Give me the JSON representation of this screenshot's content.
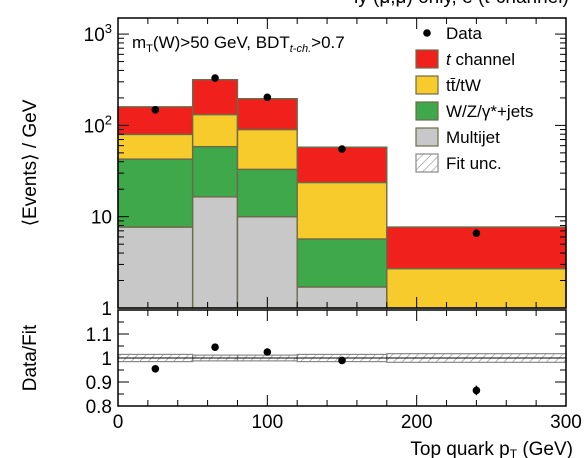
{
  "chart_data": [
    {
      "type": "bar",
      "panel": "main",
      "stacked": true,
      "title_fragment": "ly (μ,μ) only, e (t-channel)",
      "ylabel": "⟨Events⟩ / GeV",
      "xlabel": "Top quark p",
      "xlabel_sub": "T",
      "xlabel_unit": "(GeV)",
      "y_scale": "log",
      "ylim": [
        1,
        1500
      ],
      "xlim": [
        0,
        300
      ],
      "bin_edges": [
        0,
        50,
        80,
        120,
        180,
        300
      ],
      "cut_text": {
        "m": "m",
        "m_sub": "T",
        "m_rest": "(W)>50 GeV, BDT",
        "bdt_sub": "t-ch.",
        "bdt_rest": ">0.7"
      },
      "y_tick_labels": [
        {
          "value": 1000,
          "base": "10",
          "exp": "3"
        },
        {
          "value": 100,
          "base": "10",
          "exp": "2"
        },
        {
          "value": 10,
          "base": "10",
          "exp": ""
        },
        {
          "value": 1,
          "base": "1",
          "exp": ""
        }
      ],
      "series": [
        {
          "name": "Multijet",
          "color": "#c8c8c8",
          "values": [
            7.7,
            16.5,
            10.0,
            1.7,
            0.0
          ]
        },
        {
          "name": "W/Z/γ*+jets",
          "color": "#3fa84a",
          "values": [
            35,
            42,
            23,
            4.0,
            0.0
          ]
        },
        {
          "name": "tt̄/tW",
          "color": "#f8cb2c",
          "values": [
            37,
            73,
            57,
            18,
            2.7
          ]
        },
        {
          "name": "t channel",
          "color": "#f0201c",
          "values": [
            80,
            185,
            106,
            34,
            5.0
          ]
        }
      ],
      "data_points": {
        "name": "Data",
        "x": [
          25,
          65,
          100,
          150,
          240
        ],
        "y": [
          148,
          330,
          203,
          55,
          6.6
        ]
      },
      "legend": {
        "placement": "top-right",
        "entries": [
          {
            "label": "Data",
            "kind": "marker"
          },
          {
            "label": "t",
            "label_rest": " channel",
            "italic_first": true,
            "kind": "box",
            "color": "#f0201c"
          },
          {
            "label": "tt̄/tW",
            "kind": "box",
            "color": "#f8cb2c"
          },
          {
            "label": "W/Z/γ*+jets",
            "kind": "box",
            "color": "#3fa84a"
          },
          {
            "label": "Multijet",
            "kind": "box",
            "color": "#c8c8c8"
          },
          {
            "label": "Fit unc.",
            "kind": "hatch"
          }
        ]
      }
    },
    {
      "type": "scatter",
      "panel": "ratio",
      "ylabel": "Data/Fit",
      "ylim": [
        0.8,
        1.2
      ],
      "xlim": [
        0,
        300
      ],
      "y_ticks": [
        "1.1",
        "1",
        "0.9",
        "0.8"
      ],
      "x_ticks": [
        "0",
        "100",
        "200",
        "300"
      ],
      "reference_line": 1.0,
      "uncertainty_band": {
        "bin_edges": [
          0,
          50,
          80,
          120,
          180,
          300
        ],
        "half_width": [
          0.015,
          0.012,
          0.012,
          0.015,
          0.018
        ]
      },
      "points": {
        "x": [
          25,
          65,
          100,
          150,
          240
        ],
        "y": [
          0.955,
          1.045,
          1.025,
          0.99,
          0.865
        ],
        "yerr": [
          0.0,
          0.0,
          0.0,
          0.0,
          0.02
        ]
      }
    }
  ]
}
